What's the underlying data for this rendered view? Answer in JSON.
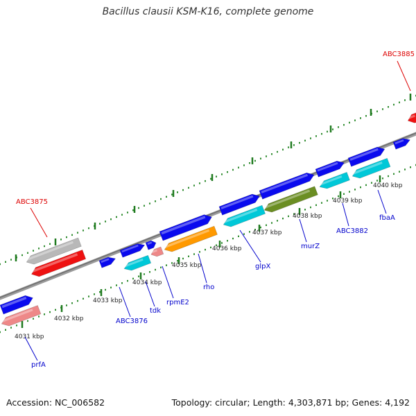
{
  "title": "Bacillus clausii KSM-K16, complete genome",
  "footer": {
    "accession": "Accession: NC_006582",
    "summary": "Topology: circular; Length: 4,303,871 bp; Genes: 4,192"
  },
  "colors": {
    "background": "#ffffff",
    "backbone": "#7a7a7a",
    "tick_minor": "#2e8b2e",
    "tick_major": "#1f7a1f",
    "forward_gene": "#0a0aee",
    "reverse_gene_dark": "#ee1111",
    "reverse_gene_light": "#ee8888",
    "rRNA_like": "#00c8d8",
    "orange_gene": "#ff9900",
    "olive_gene": "#6b8e23",
    "grey_gene": "#b8b8b8",
    "label_blue": "#0000cc",
    "label_red": "#dd0000"
  },
  "kbp_ticks": [
    {
      "label": "4031 kbp",
      "kbp": 4031
    },
    {
      "label": "4032 kbp",
      "kbp": 4032
    },
    {
      "label": "4033 kbp",
      "kbp": 4033
    },
    {
      "label": "4034 kbp",
      "kbp": 4034
    },
    {
      "label": "4035 kbp",
      "kbp": 4035
    },
    {
      "label": "4036 kbp",
      "kbp": 4036
    },
    {
      "label": "4037 kbp",
      "kbp": 4037
    },
    {
      "label": "4038 kbp",
      "kbp": 4038
    },
    {
      "label": "4039 kbp",
      "kbp": 4039
    },
    {
      "label": "4040 kbp",
      "kbp": 4040
    }
  ],
  "gene_labels": [
    {
      "name": "ABC3885",
      "color": "red"
    },
    {
      "name": "ABC3875",
      "color": "red"
    },
    {
      "name": "prfA",
      "color": "blue"
    },
    {
      "name": "ABC3876",
      "color": "blue"
    },
    {
      "name": "tdk",
      "color": "blue"
    },
    {
      "name": "rpmE2",
      "color": "blue"
    },
    {
      "name": "rho",
      "color": "blue"
    },
    {
      "name": "glpX",
      "color": "blue"
    },
    {
      "name": "murZ",
      "color": "blue"
    },
    {
      "name": "ABC3882",
      "color": "blue"
    },
    {
      "name": "fbaA",
      "color": "blue"
    }
  ]
}
